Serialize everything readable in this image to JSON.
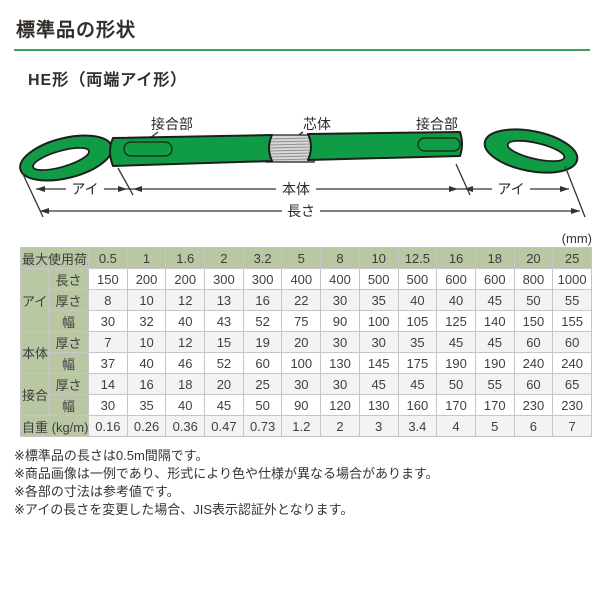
{
  "page": {
    "title": "標準品の形状",
    "subtitle": "HE形（両端アイ形）",
    "unit_label": "(mm)"
  },
  "diagram": {
    "labels": {
      "joint_left": "接合部",
      "core": "芯体",
      "joint_right": "接合部",
      "eye_left": "アイ",
      "body": "本体",
      "eye_right": "アイ",
      "length": "長さ"
    },
    "colors": {
      "sling_green": "#109c45",
      "core_gray": "#d8d8d8",
      "outline": "#1e1e1e"
    }
  },
  "table": {
    "header_label": "最大使用荷重 (t)",
    "load_columns": [
      "0.5",
      "1",
      "1.6",
      "2",
      "3.2",
      "5",
      "8",
      "10",
      "12.5",
      "16",
      "18",
      "20",
      "25"
    ],
    "groups": [
      {
        "label": "アイ",
        "rows": [
          {
            "label": "長さ",
            "values": [
              "150",
              "200",
              "200",
              "300",
              "300",
              "400",
              "400",
              "500",
              "500",
              "600",
              "600",
              "800",
              "1000"
            ]
          },
          {
            "label": "厚さ",
            "values": [
              "8",
              "10",
              "12",
              "13",
              "16",
              "22",
              "30",
              "35",
              "40",
              "40",
              "45",
              "50",
              "55"
            ]
          },
          {
            "label": "幅",
            "values": [
              "30",
              "32",
              "40",
              "43",
              "52",
              "75",
              "90",
              "100",
              "105",
              "125",
              "140",
              "150",
              "155"
            ]
          }
        ]
      },
      {
        "label": "本体",
        "rows": [
          {
            "label": "厚さ",
            "values": [
              "7",
              "10",
              "12",
              "15",
              "19",
              "20",
              "30",
              "30",
              "35",
              "45",
              "45",
              "60",
              "60"
            ]
          },
          {
            "label": "幅",
            "values": [
              "37",
              "40",
              "46",
              "52",
              "60",
              "100",
              "130",
              "145",
              "175",
              "190",
              "190",
              "240",
              "240"
            ]
          }
        ]
      },
      {
        "label": "接合部",
        "rows": [
          {
            "label": "厚さ",
            "values": [
              "14",
              "16",
              "18",
              "20",
              "25",
              "30",
              "30",
              "45",
              "45",
              "50",
              "55",
              "60",
              "65"
            ]
          },
          {
            "label": "幅",
            "values": [
              "30",
              "35",
              "40",
              "45",
              "50",
              "90",
              "120",
              "130",
              "160",
              "170",
              "170",
              "230",
              "230"
            ]
          }
        ]
      }
    ],
    "weight_row": {
      "label": "自重 (kg/m)",
      "values": [
        "0.16",
        "0.26",
        "0.36",
        "0.47",
        "0.73",
        "1.2",
        "2",
        "3",
        "3.4",
        "4",
        "5",
        "6",
        "7"
      ]
    },
    "colors": {
      "header_bg": "#b9c8a3",
      "row_alt_bg": "#f3f3f3",
      "border": "#c6c6c6"
    }
  },
  "notes": [
    "※標準品の長さは0.5m間隔です。",
    "※商品画像は一例であり、形式により色や仕様が異なる場合があります。",
    "※各部の寸法は参考値です。",
    "※アイの長さを変更した場合、JIS表示認証外となります。"
  ]
}
